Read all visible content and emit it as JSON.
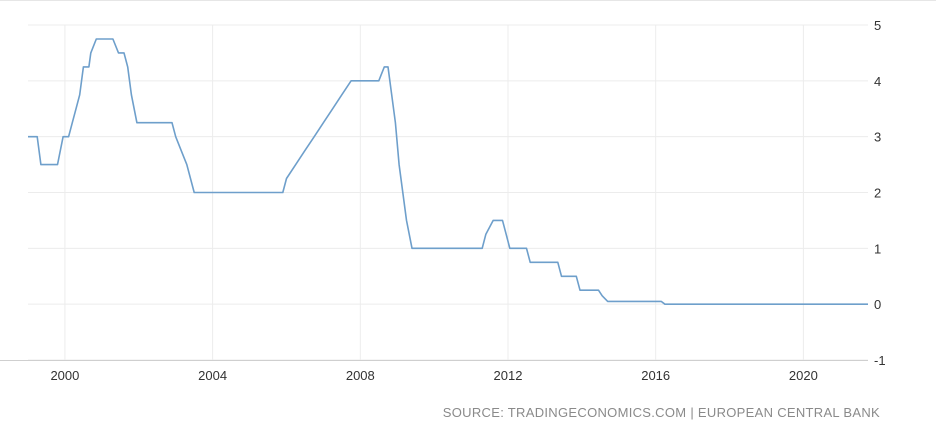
{
  "chart_data": {
    "type": "line",
    "title": "",
    "xlabel": "",
    "ylabel": "",
    "xlim": [
      1999.0,
      2021.75
    ],
    "ylim": [
      -1,
      5
    ],
    "x_ticks": [
      2000,
      2004,
      2008,
      2012,
      2016,
      2020
    ],
    "y_ticks": [
      5,
      4,
      3,
      2,
      1,
      0,
      -1
    ],
    "grid": true,
    "y_axis_side": "right",
    "line_color": "#6e9fcb",
    "series": [
      {
        "points": [
          [
            1999.0,
            3.0
          ],
          [
            1999.25,
            3.0
          ],
          [
            1999.35,
            2.5
          ],
          [
            1999.8,
            2.5
          ],
          [
            1999.95,
            3.0
          ],
          [
            2000.1,
            3.0
          ],
          [
            2000.2,
            3.25
          ],
          [
            2000.3,
            3.5
          ],
          [
            2000.4,
            3.75
          ],
          [
            2000.5,
            4.25
          ],
          [
            2000.65,
            4.25
          ],
          [
            2000.7,
            4.5
          ],
          [
            2000.85,
            4.75
          ],
          [
            2001.3,
            4.75
          ],
          [
            2001.45,
            4.5
          ],
          [
            2001.6,
            4.5
          ],
          [
            2001.7,
            4.25
          ],
          [
            2001.8,
            3.75
          ],
          [
            2001.95,
            3.25
          ],
          [
            2002.9,
            3.25
          ],
          [
            2003.0,
            3.0
          ],
          [
            2003.15,
            2.75
          ],
          [
            2003.3,
            2.5
          ],
          [
            2003.5,
            2.0
          ],
          [
            2005.9,
            2.0
          ],
          [
            2006.0,
            2.25
          ],
          [
            2006.25,
            2.5
          ],
          [
            2006.5,
            2.75
          ],
          [
            2006.75,
            3.0
          ],
          [
            2007.0,
            3.25
          ],
          [
            2007.25,
            3.5
          ],
          [
            2007.5,
            3.75
          ],
          [
            2007.75,
            4.0
          ],
          [
            2008.5,
            4.0
          ],
          [
            2008.65,
            4.25
          ],
          [
            2008.75,
            4.25
          ],
          [
            2008.85,
            3.75
          ],
          [
            2008.95,
            3.25
          ],
          [
            2009.05,
            2.5
          ],
          [
            2009.15,
            2.0
          ],
          [
            2009.25,
            1.5
          ],
          [
            2009.4,
            1.0
          ],
          [
            2011.3,
            1.0
          ],
          [
            2011.4,
            1.25
          ],
          [
            2011.6,
            1.5
          ],
          [
            2011.85,
            1.5
          ],
          [
            2011.95,
            1.25
          ],
          [
            2012.05,
            1.0
          ],
          [
            2012.5,
            1.0
          ],
          [
            2012.6,
            0.75
          ],
          [
            2013.35,
            0.75
          ],
          [
            2013.45,
            0.5
          ],
          [
            2013.85,
            0.5
          ],
          [
            2013.95,
            0.25
          ],
          [
            2014.45,
            0.25
          ],
          [
            2014.55,
            0.15
          ],
          [
            2014.7,
            0.05
          ],
          [
            2016.15,
            0.05
          ],
          [
            2016.25,
            0.0
          ],
          [
            2021.75,
            0.0
          ]
        ]
      }
    ]
  },
  "source_text": "SOURCE: TRADINGECONOMICS.COM | EUROPEAN CENTRAL BANK"
}
